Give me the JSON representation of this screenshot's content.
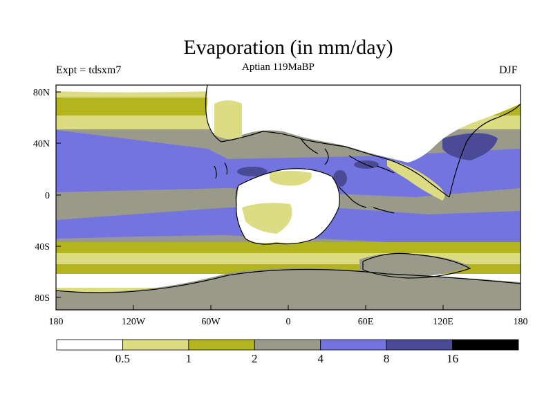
{
  "title": "Evaporation (in mm/day)",
  "subtitle": "Aptian   119MaBP",
  "experiment": "Expt = tdsxm7",
  "season": "DJF",
  "map": {
    "lat_labels": [
      "80N",
      "40N",
      "0",
      "40S",
      "80S"
    ],
    "lon_labels": [
      "180",
      "120W",
      "60W",
      "0",
      "60E",
      "120E",
      "180"
    ]
  },
  "colorbar": {
    "colors": [
      "#ffffff",
      "#dcdc82",
      "#b4b41e",
      "#9a9a8a",
      "#7474e0",
      "#4a4a96",
      "#000000"
    ],
    "labels": [
      "0.5",
      "1",
      "2",
      "4",
      "8",
      "16"
    ]
  }
}
